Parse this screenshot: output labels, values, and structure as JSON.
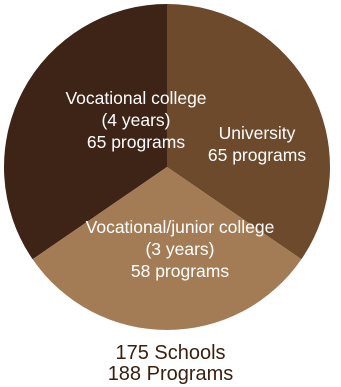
{
  "chart_data": {
    "type": "pie",
    "slices": [
      {
        "label_lines": [
          "Vocational college",
          "(4 years)",
          "65 programs"
        ],
        "value": 65,
        "color": "#3e2416"
      },
      {
        "label_lines": [
          "University",
          "65 programs"
        ],
        "value": 65,
        "color": "#6e4a2d"
      },
      {
        "label_lines": [
          "Vocational/junior college",
          "(3 years)",
          "58 programs"
        ],
        "value": 58,
        "color": "#a37c56"
      }
    ]
  },
  "summary": {
    "schools": "175 Schools",
    "programs": "188 Programs"
  }
}
